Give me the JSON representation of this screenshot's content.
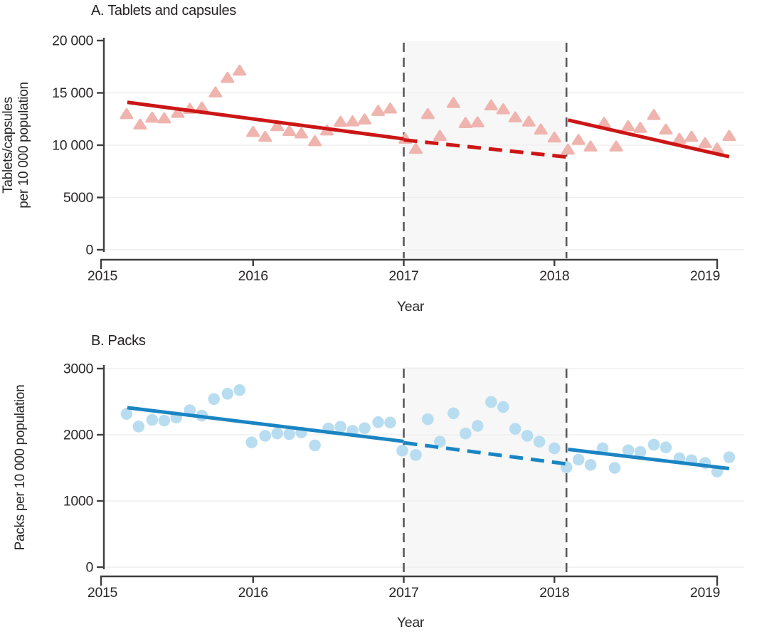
{
  "chart_data": [
    {
      "id": "tablets",
      "type": "scatter",
      "title": "A. Tablets and capsules",
      "xlabel": "Year",
      "ylabel": "Tablets/capsules\nper 10 000 population",
      "marker": "triangle",
      "xlim": [
        2014.95,
        2019.25
      ],
      "ylim": [
        0,
        20000
      ],
      "xticks": [
        {
          "value": 2015,
          "label": "2015"
        },
        {
          "value": 2016,
          "label": "2016"
        },
        {
          "value": 2017,
          "label": "2017"
        },
        {
          "value": 2018,
          "label": "2018"
        },
        {
          "value": 2019,
          "label": "2019"
        }
      ],
      "yticks": [
        {
          "value": 20000,
          "label": "20 000",
          "grid": false
        },
        {
          "value": 15000,
          "label": "15 000"
        },
        {
          "value": 10000,
          "label": "10 000"
        },
        {
          "value": 5000,
          "label": "5000"
        },
        {
          "value": 0,
          "label": "0"
        }
      ],
      "shaded_region": {
        "from": 2017.0,
        "to": 2018.08
      },
      "colors": {
        "point": "#efb4ae",
        "line": "#cc1616",
        "interruption": "#58595b",
        "band": "#f7f7f7",
        "grid": "#f1eeee",
        "axis": "#3d3e40"
      },
      "points": [
        [
          2015.16,
          12800
        ],
        [
          2015.25,
          11800
        ],
        [
          2015.33,
          12460
        ],
        [
          2015.41,
          12390
        ],
        [
          2015.5,
          12920
        ],
        [
          2015.58,
          13290
        ],
        [
          2015.66,
          13430
        ],
        [
          2015.75,
          14870
        ],
        [
          2015.83,
          16260
        ],
        [
          2015.91,
          16950
        ],
        [
          2016.0,
          11090
        ],
        [
          2016.08,
          10630
        ],
        [
          2016.16,
          11650
        ],
        [
          2016.24,
          11180
        ],
        [
          2016.32,
          10950
        ],
        [
          2016.41,
          10210
        ],
        [
          2016.49,
          11230
        ],
        [
          2016.58,
          12060
        ],
        [
          2016.66,
          12100
        ],
        [
          2016.74,
          12290
        ],
        [
          2016.83,
          13100
        ],
        [
          2016.91,
          13330
        ],
        [
          2017.01,
          10440
        ],
        [
          2017.08,
          9470
        ],
        [
          2017.16,
          12800
        ],
        [
          2017.24,
          10710
        ],
        [
          2017.33,
          13860
        ],
        [
          2017.41,
          11940
        ],
        [
          2017.49,
          12010
        ],
        [
          2017.58,
          13630
        ],
        [
          2017.66,
          13260
        ],
        [
          2017.74,
          12480
        ],
        [
          2017.83,
          12080
        ],
        [
          2017.91,
          11320
        ],
        [
          2018.0,
          10560
        ],
        [
          2018.09,
          9400
        ],
        [
          2018.16,
          10330
        ],
        [
          2018.24,
          9700
        ],
        [
          2018.33,
          11950
        ],
        [
          2018.41,
          9700
        ],
        [
          2018.49,
          11640
        ],
        [
          2018.57,
          11480
        ],
        [
          2018.66,
          12710
        ],
        [
          2018.74,
          11320
        ],
        [
          2018.83,
          10440
        ],
        [
          2018.91,
          10630
        ],
        [
          2019.0,
          10020
        ],
        [
          2019.08,
          9510
        ],
        [
          2019.16,
          10710
        ]
      ],
      "trend_segments": [
        {
          "role": "pre-intervention",
          "style": "solid",
          "x": [
            2015.165,
            2017.0
          ],
          "y": [
            14100,
            10600
          ]
        },
        {
          "role": "interruption-projection",
          "style": "dashed",
          "x": [
            2017.0,
            2018.08
          ],
          "y": [
            10500,
            8870
          ]
        },
        {
          "role": "post-intervention",
          "style": "solid",
          "x": [
            2018.09,
            2019.16
          ],
          "y": [
            12400,
            8900
          ]
        }
      ]
    },
    {
      "id": "packs",
      "type": "scatter",
      "title": "B. Packs",
      "xlabel": "Year",
      "ylabel": "Packs per 10 000 population",
      "marker": "circle",
      "xlim": [
        2014.95,
        2019.25
      ],
      "ylim": [
        0,
        3000
      ],
      "xticks": [
        {
          "value": 2015,
          "label": "2015"
        },
        {
          "value": 2016,
          "label": "2016"
        },
        {
          "value": 2017,
          "label": "2017"
        },
        {
          "value": 2018,
          "label": "2018"
        },
        {
          "value": 2019,
          "label": "2019"
        }
      ],
      "yticks": [
        {
          "value": 3000,
          "label": "3000"
        },
        {
          "value": 2000,
          "label": "2000"
        },
        {
          "value": 1000,
          "label": "1000"
        },
        {
          "value": 0,
          "label": "0"
        }
      ],
      "shaded_region": {
        "from": 2017.0,
        "to": 2018.08
      },
      "colors": {
        "point": "#b9ddf0",
        "line": "#1b85c3",
        "interruption": "#58595b",
        "band": "#f7f7f7",
        "grid": "#f1eeee",
        "axis": "#3d3e40"
      },
      "points": [
        [
          2015.16,
          2315
        ],
        [
          2015.24,
          2125
        ],
        [
          2015.33,
          2225
        ],
        [
          2015.41,
          2215
        ],
        [
          2015.49,
          2260
        ],
        [
          2015.58,
          2370
        ],
        [
          2015.66,
          2290
        ],
        [
          2015.74,
          2540
        ],
        [
          2015.83,
          2620
        ],
        [
          2015.91,
          2675
        ],
        [
          2015.99,
          1885
        ],
        [
          2016.08,
          1985
        ],
        [
          2016.16,
          2020
        ],
        [
          2016.24,
          2010
        ],
        [
          2016.32,
          2035
        ],
        [
          2016.41,
          1840
        ],
        [
          2016.5,
          2095
        ],
        [
          2016.58,
          2120
        ],
        [
          2016.66,
          2060
        ],
        [
          2016.74,
          2100
        ],
        [
          2016.83,
          2190
        ],
        [
          2016.91,
          2185
        ],
        [
          2016.99,
          1760
        ],
        [
          2017.08,
          1695
        ],
        [
          2017.16,
          2235
        ],
        [
          2017.24,
          1895
        ],
        [
          2017.33,
          2325
        ],
        [
          2017.41,
          2020
        ],
        [
          2017.49,
          2135
        ],
        [
          2017.58,
          2495
        ],
        [
          2017.66,
          2420
        ],
        [
          2017.74,
          2090
        ],
        [
          2017.82,
          1985
        ],
        [
          2017.9,
          1895
        ],
        [
          2018.0,
          1795
        ],
        [
          2018.08,
          1510
        ],
        [
          2018.16,
          1625
        ],
        [
          2018.24,
          1545
        ],
        [
          2018.32,
          1795
        ],
        [
          2018.4,
          1500
        ],
        [
          2018.49,
          1765
        ],
        [
          2018.57,
          1740
        ],
        [
          2018.66,
          1850
        ],
        [
          2018.74,
          1810
        ],
        [
          2018.83,
          1645
        ],
        [
          2018.91,
          1615
        ],
        [
          2019.0,
          1575
        ],
        [
          2019.08,
          1445
        ],
        [
          2019.16,
          1660
        ]
      ],
      "trend_segments": [
        {
          "role": "pre-intervention",
          "style": "solid",
          "x": [
            2015.165,
            2017.0
          ],
          "y": [
            2410,
            1900
          ]
        },
        {
          "role": "interruption-projection",
          "style": "dashed",
          "x": [
            2017.0,
            2018.08
          ],
          "y": [
            1880,
            1560
          ]
        },
        {
          "role": "post-intervention",
          "style": "solid",
          "x": [
            2018.09,
            2019.16
          ],
          "y": [
            1780,
            1490
          ]
        }
      ]
    }
  ]
}
